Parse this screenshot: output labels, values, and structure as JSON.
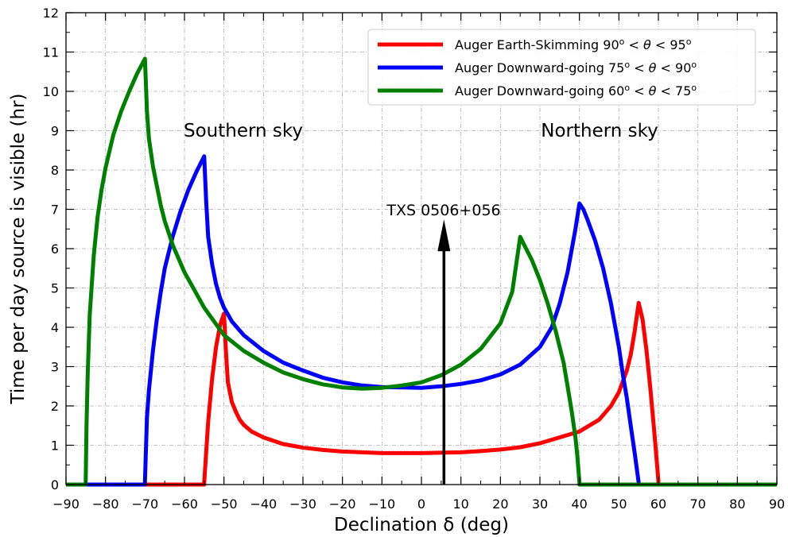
{
  "chart_data": {
    "type": "line",
    "xlabel": "Declination δ (deg)",
    "ylabel": "Time per day source is visible (hr)",
    "xlim": [
      -90,
      90
    ],
    "ylim": [
      0,
      12
    ],
    "xticks": [
      -90,
      -80,
      -70,
      -60,
      -50,
      -40,
      -30,
      -20,
      -10,
      0,
      10,
      20,
      30,
      40,
      50,
      60,
      70,
      80,
      90
    ],
    "yticks": [
      0,
      1,
      2,
      3,
      4,
      5,
      6,
      7,
      8,
      9,
      10,
      11,
      12
    ],
    "grid": true,
    "legend_position": "top-right",
    "series": [
      {
        "name": "Auger Earth-Skimming 90° < θ < 95°",
        "legend_prefix": "Auger Earth-Skimming 90",
        "legend_sym": "θ",
        "legend_lo": "90",
        "legend_hi": "95",
        "color": "#ff0000",
        "x": [
          -90,
          -55,
          -55,
          -54,
          -53,
          -52,
          -51,
          -50,
          -49.5,
          -49,
          -48,
          -47,
          -46,
          -45,
          -43,
          -40,
          -35,
          -30,
          -25,
          -20,
          -15,
          -10,
          -5,
          0,
          5,
          10,
          15,
          20,
          25,
          30,
          35,
          40,
          45,
          48,
          50,
          52,
          53,
          54,
          55,
          56,
          57,
          58,
          59,
          60,
          60,
          90
        ],
        "y": [
          0,
          0,
          0.05,
          1.6,
          2.7,
          3.5,
          4.05,
          4.35,
          3.4,
          2.6,
          2.1,
          1.85,
          1.65,
          1.52,
          1.35,
          1.2,
          1.03,
          0.94,
          0.88,
          0.84,
          0.82,
          0.8,
          0.8,
          0.8,
          0.81,
          0.82,
          0.85,
          0.89,
          0.95,
          1.05,
          1.2,
          1.35,
          1.65,
          2.0,
          2.35,
          2.9,
          3.3,
          3.9,
          4.62,
          4.2,
          3.4,
          2.4,
          1.3,
          0.1,
          0,
          0
        ]
      },
      {
        "name": "Auger Downward-going 75° < θ < 90°",
        "legend_prefix": "Auger Downward-going 75",
        "legend_sym": "θ",
        "legend_lo": "75",
        "legend_hi": "90",
        "color": "#0000ff",
        "x": [
          -90,
          -70,
          -70,
          -69.5,
          -69,
          -68,
          -67,
          -66,
          -65,
          -63,
          -61,
          -59,
          -57,
          -55,
          -54.5,
          -54,
          -53,
          -52,
          -51,
          -50,
          -48,
          -45,
          -40,
          -35,
          -30,
          -25,
          -20,
          -15,
          -10,
          -5,
          0,
          5,
          10,
          15,
          20,
          25,
          30,
          33,
          35,
          37,
          39,
          40,
          41,
          42,
          44,
          46,
          48,
          50,
          51,
          52,
          53,
          54,
          55,
          55,
          90
        ],
        "y": [
          0,
          0,
          0.1,
          1.7,
          2.4,
          3.4,
          4.2,
          4.9,
          5.5,
          6.3,
          6.95,
          7.5,
          7.95,
          8.35,
          7.2,
          6.3,
          5.6,
          5.1,
          4.75,
          4.5,
          4.15,
          3.8,
          3.4,
          3.1,
          2.9,
          2.72,
          2.6,
          2.52,
          2.48,
          2.47,
          2.46,
          2.5,
          2.56,
          2.65,
          2.8,
          3.05,
          3.5,
          4.0,
          4.6,
          5.4,
          6.5,
          7.15,
          7.0,
          6.75,
          6.2,
          5.5,
          4.6,
          3.5,
          2.8,
          2.2,
          1.5,
          0.8,
          0.05,
          0,
          0
        ]
      },
      {
        "name": "Auger Downward-going 60° < θ < 75°",
        "legend_prefix": "Auger Downward-going 60",
        "legend_sym": "θ",
        "legend_lo": "60",
        "legend_hi": "75",
        "color": "#008000",
        "x": [
          -90,
          -85,
          -85,
          -84.8,
          -84.5,
          -84,
          -83,
          -82,
          -81,
          -80,
          -78,
          -76,
          -74,
          -72,
          -70,
          -69.5,
          -69,
          -68,
          -67,
          -66,
          -65,
          -63,
          -60,
          -55,
          -50,
          -45,
          -40,
          -35,
          -30,
          -25,
          -20,
          -15,
          -10,
          -5,
          0,
          5,
          10,
          15,
          20,
          23,
          25,
          26,
          28,
          30,
          32,
          34,
          36,
          37,
          38,
          39,
          39.5,
          40,
          40,
          90
        ],
        "y": [
          0,
          0,
          0.1,
          1.5,
          2.8,
          4.3,
          5.8,
          6.8,
          7.5,
          8.05,
          8.9,
          9.5,
          10.0,
          10.45,
          10.83,
          9.5,
          8.8,
          8.1,
          7.6,
          7.1,
          6.7,
          6.1,
          5.4,
          4.5,
          3.8,
          3.4,
          3.1,
          2.85,
          2.68,
          2.55,
          2.47,
          2.44,
          2.46,
          2.52,
          2.6,
          2.78,
          3.05,
          3.45,
          4.1,
          4.9,
          6.3,
          6.1,
          5.7,
          5.2,
          4.6,
          3.9,
          3.1,
          2.5,
          1.9,
          1.2,
          0.7,
          0.05,
          0,
          0
        ]
      }
    ],
    "annotations": {
      "southern": "Southern sky",
      "northern": "Northern sky",
      "source": "TXS 0506+056",
      "source_declination": 5.7,
      "source_arrow_top": 6.5
    }
  }
}
